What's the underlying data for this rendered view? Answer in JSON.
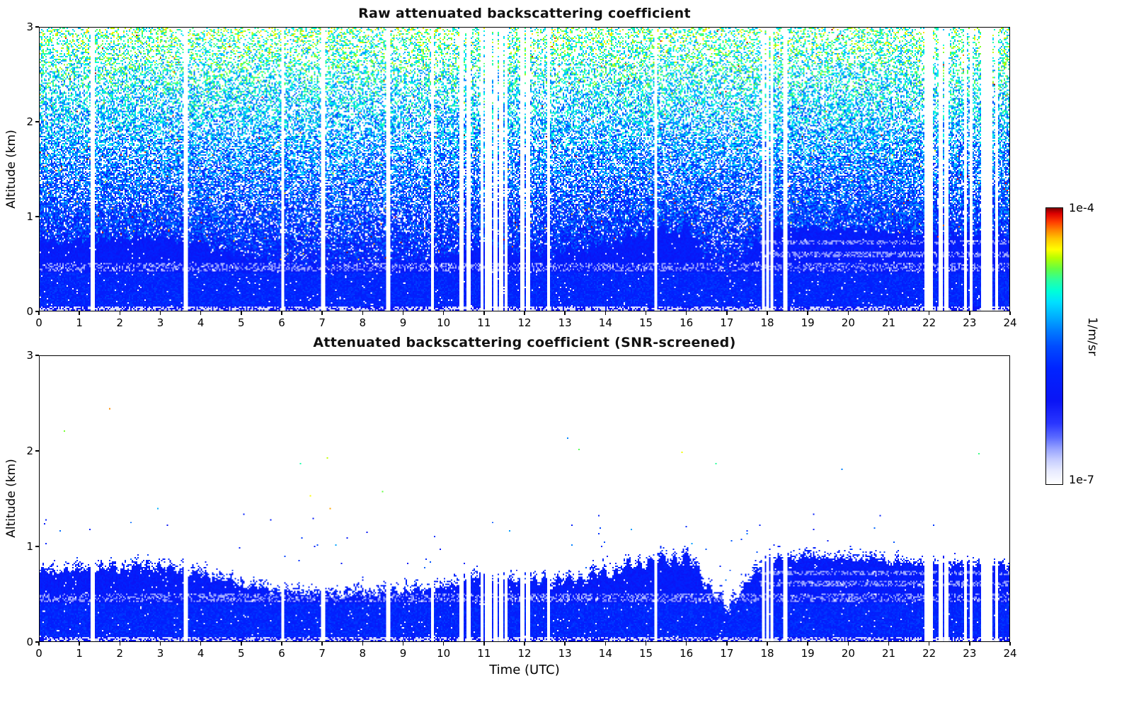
{
  "figure": {
    "background": "#ffffff"
  },
  "chart_data": [
    {
      "type": "heatmap",
      "title": "Raw attenuated backscattering coefficient",
      "xlabel": "",
      "ylabel": "Altitude (km)",
      "x_range": [
        0,
        24
      ],
      "y_range": [
        0,
        3
      ],
      "x_ticks": [
        0,
        1,
        2,
        3,
        4,
        5,
        6,
        7,
        8,
        9,
        10,
        11,
        12,
        13,
        14,
        15,
        16,
        17,
        18,
        19,
        20,
        21,
        22,
        23,
        24
      ],
      "y_ticks": [
        0,
        1,
        2,
        3
      ],
      "grid": false,
      "legend": "shared log colorbar 1e-7 to 1e-4 1/m/sr",
      "description": "Time-height curtain plot. Solid strong-blue aerosol/boundary layer below ~0.3-0.9 km; above it dense instrument noise speckle (blue at low altitude grading to cyan/green/yellow aloft, rare orange/red dots), speckle density decreasing with height; white vertical stripes are missing profiles."
    },
    {
      "type": "heatmap",
      "title": "Attenuated backscattering coefficient (SNR-screened)",
      "xlabel": "Time (UTC)",
      "ylabel": "Altitude (km)",
      "x_range": [
        0,
        24
      ],
      "y_range": [
        0,
        3
      ],
      "x_ticks": [
        0,
        1,
        2,
        3,
        4,
        5,
        6,
        7,
        8,
        9,
        10,
        11,
        12,
        13,
        14,
        15,
        16,
        17,
        18,
        19,
        20,
        21,
        22,
        23,
        24
      ],
      "y_ticks": [
        0,
        1,
        2,
        3
      ],
      "grid": false,
      "legend": "shared log colorbar 1e-7 to 1e-4 1/m/sr",
      "description": "Same scene after SNR screening: only the boundary-layer backscatter below ~1 km remains (solid blue with pale light-blue internal bands and a ragged speckled top edge); everything above is blank white except a few isolated specks below ~2.4 km; same white vertical data-gap stripes."
    }
  ],
  "colorbar": {
    "min_label": "1e-7",
    "max_label": "1e-4",
    "unit": "1/m/sr",
    "scale": "log",
    "colormap_stops": [
      [
        0.0,
        "#ffffff"
      ],
      [
        0.05,
        "#e6e9ff"
      ],
      [
        0.09,
        "#c4cbff"
      ],
      [
        0.13,
        "#94a0ff"
      ],
      [
        0.17,
        "#5a6aff"
      ],
      [
        0.22,
        "#2a36ff"
      ],
      [
        0.3,
        "#0a14f5"
      ],
      [
        0.42,
        "#0024ff"
      ],
      [
        0.5,
        "#004cff"
      ],
      [
        0.56,
        "#0080ff"
      ],
      [
        0.61,
        "#00b2ff"
      ],
      [
        0.66,
        "#00e0ff"
      ],
      [
        0.7,
        "#00ffd8"
      ],
      [
        0.74,
        "#2bff9e"
      ],
      [
        0.78,
        "#63ff43"
      ],
      [
        0.82,
        "#b8ff00"
      ],
      [
        0.85,
        "#ffff00"
      ],
      [
        0.89,
        "#ffc400"
      ],
      [
        0.92,
        "#ff8400"
      ],
      [
        0.95,
        "#ff3c00"
      ],
      [
        0.98,
        "#dd0000"
      ],
      [
        1.0,
        "#7f0000"
      ]
    ]
  },
  "scene": {
    "boundary_layer_top_km": [
      0.72,
      0.74,
      0.76,
      0.78,
      0.7,
      0.58,
      0.52,
      0.48,
      0.5,
      0.52,
      0.55,
      0.68,
      0.6,
      0.62,
      0.7,
      0.82,
      0.88,
      0.33,
      0.85,
      0.88,
      0.86,
      0.84,
      0.8,
      0.8,
      0.78
    ],
    "data_gap_hours": [
      1.32,
      3.62,
      6.02,
      7.02,
      8.62,
      9.72,
      10.45,
      10.62,
      10.95,
      11.05,
      11.15,
      11.28,
      11.42,
      11.55,
      11.95,
      12.08,
      12.6,
      15.25,
      17.92,
      18.02,
      18.12,
      18.45,
      21.95,
      22.05,
      22.3,
      22.45,
      22.92,
      23.05,
      23.35,
      23.45,
      23.55,
      23.68
    ]
  }
}
